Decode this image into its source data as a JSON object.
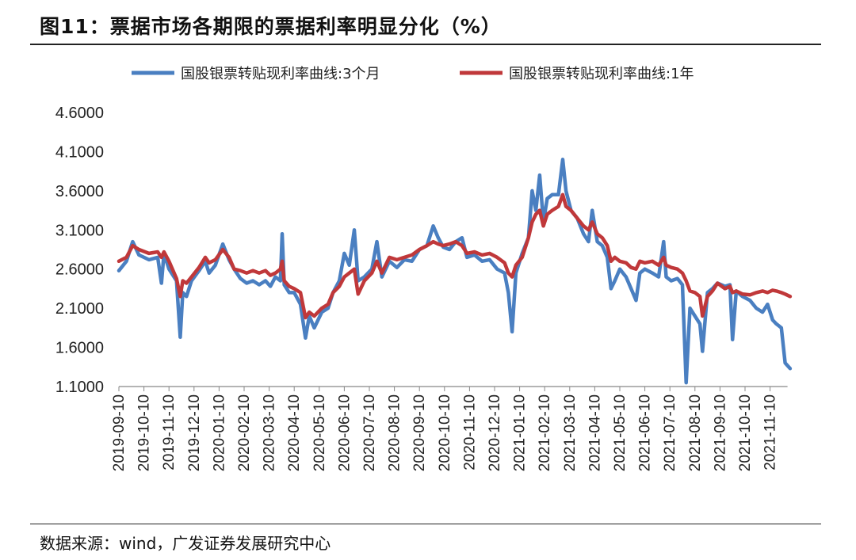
{
  "header": {
    "title": "图11：票据市场各期限的票据利率明显分化（%）"
  },
  "footer": {
    "source": "数据来源：wind，广发证券发展研究中心"
  },
  "chart_data": {
    "type": "line",
    "title": "票据市场各期限的票据利率明显分化（%）",
    "xlabel": "",
    "ylabel": "",
    "ylim": [
      1.1,
      4.6
    ],
    "yticks": [
      "4.6000",
      "4.1000",
      "3.6000",
      "3.1000",
      "2.6000",
      "2.1000",
      "1.6000",
      "1.1000"
    ],
    "xticks": [
      "2019-09-10",
      "2019-10-10",
      "2019-11-10",
      "2019-12-10",
      "2020-01-10",
      "2020-02-10",
      "2020-03-10",
      "2020-04-10",
      "2020-05-10",
      "2020-06-10",
      "2020-07-10",
      "2020-08-10",
      "2020-09-10",
      "2020-10-10",
      "2020-11-10",
      "2020-12-10",
      "2021-01-10",
      "2021-02-10",
      "2021-03-10",
      "2021-04-10",
      "2021-05-10",
      "2021-06-10",
      "2021-07-10",
      "2021-08-10",
      "2021-09-10",
      "2021-10-10",
      "2021-11-10"
    ],
    "legend_position": "top",
    "series": [
      {
        "name": "国股银票转贴现利率曲线:3个月",
        "color": "#4a7fc1",
        "points": [
          [
            0,
            2.58
          ],
          [
            0.3,
            2.7
          ],
          [
            0.55,
            2.95
          ],
          [
            0.8,
            2.78
          ],
          [
            1.2,
            2.72
          ],
          [
            1.55,
            2.75
          ],
          [
            1.7,
            2.42
          ],
          [
            1.8,
            2.8
          ],
          [
            2.0,
            2.6
          ],
          [
            2.3,
            2.45
          ],
          [
            2.45,
            1.73
          ],
          [
            2.55,
            2.3
          ],
          [
            2.7,
            2.25
          ],
          [
            2.9,
            2.45
          ],
          [
            3.2,
            2.58
          ],
          [
            3.45,
            2.7
          ],
          [
            3.6,
            2.55
          ],
          [
            3.85,
            2.65
          ],
          [
            4.15,
            2.92
          ],
          [
            4.4,
            2.72
          ],
          [
            4.6,
            2.6
          ],
          [
            4.85,
            2.48
          ],
          [
            5.1,
            2.42
          ],
          [
            5.35,
            2.45
          ],
          [
            5.6,
            2.4
          ],
          [
            5.85,
            2.45
          ],
          [
            6.05,
            2.38
          ],
          [
            6.25,
            2.5
          ],
          [
            6.45,
            2.45
          ],
          [
            6.52,
            3.05
          ],
          [
            6.6,
            2.4
          ],
          [
            6.8,
            2.3
          ],
          [
            7.0,
            2.3
          ],
          [
            7.25,
            2.15
          ],
          [
            7.45,
            1.72
          ],
          [
            7.6,
            2.0
          ],
          [
            7.8,
            1.85
          ],
          [
            8.1,
            2.05
          ],
          [
            8.35,
            2.1
          ],
          [
            8.55,
            2.3
          ],
          [
            8.8,
            2.45
          ],
          [
            9.0,
            2.8
          ],
          [
            9.2,
            2.65
          ],
          [
            9.4,
            3.1
          ],
          [
            9.55,
            2.45
          ],
          [
            9.8,
            2.5
          ],
          [
            10.1,
            2.6
          ],
          [
            10.3,
            2.95
          ],
          [
            10.5,
            2.5
          ],
          [
            10.8,
            2.7
          ],
          [
            11.1,
            2.62
          ],
          [
            11.4,
            2.72
          ],
          [
            11.7,
            2.7
          ],
          [
            12.0,
            2.85
          ],
          [
            12.3,
            2.9
          ],
          [
            12.55,
            3.15
          ],
          [
            12.75,
            3.0
          ],
          [
            12.95,
            2.88
          ],
          [
            13.2,
            2.85
          ],
          [
            13.45,
            2.95
          ],
          [
            13.7,
            3.0
          ],
          [
            13.9,
            2.75
          ],
          [
            14.2,
            2.78
          ],
          [
            14.5,
            2.7
          ],
          [
            14.8,
            2.72
          ],
          [
            15.1,
            2.6
          ],
          [
            15.4,
            2.55
          ],
          [
            15.55,
            2.3
          ],
          [
            15.7,
            1.8
          ],
          [
            15.85,
            2.55
          ],
          [
            16.1,
            2.8
          ],
          [
            16.35,
            3.0
          ],
          [
            16.5,
            3.6
          ],
          [
            16.65,
            3.35
          ],
          [
            16.8,
            3.8
          ],
          [
            16.95,
            3.2
          ],
          [
            17.1,
            3.5
          ],
          [
            17.3,
            3.55
          ],
          [
            17.55,
            3.55
          ],
          [
            17.72,
            4.0
          ],
          [
            17.85,
            3.6
          ],
          [
            18.05,
            3.35
          ],
          [
            18.3,
            3.25
          ],
          [
            18.55,
            3.05
          ],
          [
            18.75,
            2.95
          ],
          [
            18.9,
            3.35
          ],
          [
            19.1,
            2.95
          ],
          [
            19.3,
            2.9
          ],
          [
            19.5,
            2.75
          ],
          [
            19.65,
            2.35
          ],
          [
            19.8,
            2.45
          ],
          [
            20.0,
            2.6
          ],
          [
            20.25,
            2.5
          ],
          [
            20.45,
            2.35
          ],
          [
            20.65,
            2.2
          ],
          [
            20.8,
            2.55
          ],
          [
            21.0,
            2.6
          ],
          [
            21.3,
            2.55
          ],
          [
            21.55,
            2.5
          ],
          [
            21.75,
            2.95
          ],
          [
            21.85,
            2.5
          ],
          [
            22.05,
            2.45
          ],
          [
            22.3,
            2.48
          ],
          [
            22.5,
            2.4
          ],
          [
            22.65,
            1.15
          ],
          [
            22.8,
            2.1
          ],
          [
            23.0,
            2.0
          ],
          [
            23.2,
            1.9
          ],
          [
            23.3,
            1.55
          ],
          [
            23.5,
            2.3
          ],
          [
            23.7,
            2.35
          ],
          [
            23.9,
            2.42
          ],
          [
            24.2,
            2.38
          ],
          [
            24.4,
            2.4
          ],
          [
            24.5,
            1.7
          ],
          [
            24.65,
            2.32
          ],
          [
            24.9,
            2.25
          ],
          [
            25.2,
            2.2
          ],
          [
            25.45,
            2.1
          ],
          [
            25.7,
            2.05
          ],
          [
            25.9,
            2.15
          ],
          [
            26.1,
            1.95
          ],
          [
            26.25,
            1.9
          ],
          [
            26.45,
            1.85
          ],
          [
            26.6,
            1.4
          ],
          [
            26.8,
            1.33
          ]
        ]
      },
      {
        "name": "国股银票转贴现利率曲线:1年",
        "color": "#c0383a",
        "points": [
          [
            0,
            2.7
          ],
          [
            0.3,
            2.75
          ],
          [
            0.55,
            2.9
          ],
          [
            0.8,
            2.85
          ],
          [
            1.2,
            2.8
          ],
          [
            1.55,
            2.82
          ],
          [
            1.7,
            2.75
          ],
          [
            1.8,
            2.82
          ],
          [
            2.0,
            2.7
          ],
          [
            2.3,
            2.48
          ],
          [
            2.45,
            2.25
          ],
          [
            2.55,
            2.45
          ],
          [
            2.7,
            2.42
          ],
          [
            2.9,
            2.5
          ],
          [
            3.2,
            2.62
          ],
          [
            3.45,
            2.75
          ],
          [
            3.6,
            2.68
          ],
          [
            3.85,
            2.72
          ],
          [
            4.15,
            2.85
          ],
          [
            4.4,
            2.75
          ],
          [
            4.6,
            2.6
          ],
          [
            4.85,
            2.58
          ],
          [
            5.1,
            2.55
          ],
          [
            5.35,
            2.58
          ],
          [
            5.6,
            2.55
          ],
          [
            5.85,
            2.58
          ],
          [
            6.05,
            2.52
          ],
          [
            6.25,
            2.55
          ],
          [
            6.45,
            2.6
          ],
          [
            6.52,
            2.7
          ],
          [
            6.6,
            2.45
          ],
          [
            6.8,
            2.38
          ],
          [
            7.0,
            2.35
          ],
          [
            7.25,
            2.3
          ],
          [
            7.45,
            1.98
          ],
          [
            7.6,
            2.05
          ],
          [
            7.8,
            2.0
          ],
          [
            8.1,
            2.1
          ],
          [
            8.35,
            2.15
          ],
          [
            8.55,
            2.3
          ],
          [
            8.8,
            2.38
          ],
          [
            9.0,
            2.5
          ],
          [
            9.2,
            2.55
          ],
          [
            9.4,
            2.6
          ],
          [
            9.55,
            2.28
          ],
          [
            9.8,
            2.45
          ],
          [
            10.1,
            2.55
          ],
          [
            10.3,
            2.7
          ],
          [
            10.5,
            2.55
          ],
          [
            10.8,
            2.75
          ],
          [
            11.1,
            2.72
          ],
          [
            11.4,
            2.75
          ],
          [
            11.7,
            2.78
          ],
          [
            12.0,
            2.85
          ],
          [
            12.3,
            2.9
          ],
          [
            12.55,
            2.95
          ],
          [
            12.75,
            2.92
          ],
          [
            12.95,
            2.9
          ],
          [
            13.2,
            2.92
          ],
          [
            13.45,
            2.95
          ],
          [
            13.7,
            2.9
          ],
          [
            13.9,
            2.8
          ],
          [
            14.2,
            2.82
          ],
          [
            14.5,
            2.78
          ],
          [
            14.8,
            2.8
          ],
          [
            15.1,
            2.75
          ],
          [
            15.4,
            2.68
          ],
          [
            15.55,
            2.55
          ],
          [
            15.7,
            2.5
          ],
          [
            15.85,
            2.65
          ],
          [
            16.1,
            2.75
          ],
          [
            16.35,
            3.0
          ],
          [
            16.5,
            3.2
          ],
          [
            16.65,
            3.3
          ],
          [
            16.8,
            3.35
          ],
          [
            16.95,
            3.15
          ],
          [
            17.1,
            3.3
          ],
          [
            17.3,
            3.35
          ],
          [
            17.55,
            3.4
          ],
          [
            17.72,
            3.55
          ],
          [
            17.85,
            3.4
          ],
          [
            18.05,
            3.35
          ],
          [
            18.3,
            3.25
          ],
          [
            18.55,
            3.15
          ],
          [
            18.75,
            3.1
          ],
          [
            18.9,
            3.2
          ],
          [
            19.1,
            3.05
          ],
          [
            19.3,
            3.0
          ],
          [
            19.5,
            2.9
          ],
          [
            19.65,
            2.7
          ],
          [
            19.8,
            2.75
          ],
          [
            20.0,
            2.7
          ],
          [
            20.25,
            2.68
          ],
          [
            20.45,
            2.62
          ],
          [
            20.65,
            2.6
          ],
          [
            20.8,
            2.7
          ],
          [
            21.0,
            2.68
          ],
          [
            21.3,
            2.7
          ],
          [
            21.55,
            2.65
          ],
          [
            21.75,
            2.75
          ],
          [
            21.85,
            2.65
          ],
          [
            22.05,
            2.62
          ],
          [
            22.3,
            2.6
          ],
          [
            22.5,
            2.55
          ],
          [
            22.65,
            2.45
          ],
          [
            22.8,
            2.32
          ],
          [
            23.0,
            2.3
          ],
          [
            23.2,
            2.25
          ],
          [
            23.3,
            2.0
          ],
          [
            23.5,
            2.25
          ],
          [
            23.7,
            2.32
          ],
          [
            23.9,
            2.42
          ],
          [
            24.2,
            2.35
          ],
          [
            24.4,
            2.38
          ],
          [
            24.5,
            2.3
          ],
          [
            24.65,
            2.32
          ],
          [
            24.9,
            2.28
          ],
          [
            25.2,
            2.27
          ],
          [
            25.45,
            2.3
          ],
          [
            25.7,
            2.32
          ],
          [
            25.9,
            2.3
          ],
          [
            26.1,
            2.33
          ],
          [
            26.25,
            2.32
          ],
          [
            26.45,
            2.3
          ],
          [
            26.6,
            2.28
          ],
          [
            26.8,
            2.25
          ]
        ]
      }
    ]
  }
}
